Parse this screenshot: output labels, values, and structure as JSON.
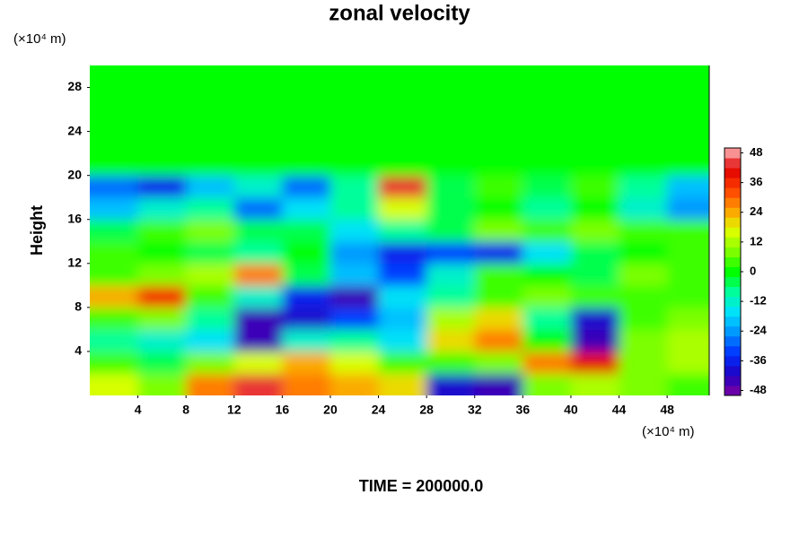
{
  "chart_data": {
    "type": "contour",
    "title": "zonal velocity",
    "xlabel": "(×10⁴ m)",
    "ylabel": "Height",
    "yunit": "(×10⁴ m)",
    "footer": "TIME = 200000.0",
    "xlim": [
      0,
      51.5
    ],
    "ylim": [
      0,
      30
    ],
    "xticks": [
      4,
      8,
      12,
      16,
      20,
      24,
      28,
      32,
      36,
      40,
      44,
      48
    ],
    "yticks": [
      4,
      8,
      12,
      16,
      20,
      24,
      28
    ],
    "x": [
      2,
      6,
      10,
      14,
      18,
      22,
      26,
      30,
      34,
      38,
      42,
      46,
      50
    ],
    "y": [
      1,
      3,
      5,
      7,
      9,
      11,
      13,
      15,
      17,
      19,
      21,
      23,
      25,
      27,
      29
    ],
    "z": [
      [
        16,
        8,
        28,
        44,
        28,
        24,
        20,
        -40,
        -44,
        8,
        12,
        8,
        4
      ],
      [
        4,
        -4,
        8,
        16,
        24,
        16,
        4,
        4,
        8,
        28,
        40,
        8,
        12
      ],
      [
        -8,
        -12,
        -16,
        -44,
        -12,
        -8,
        -16,
        20,
        28,
        0,
        -44,
        8,
        12
      ],
      [
        4,
        8,
        -8,
        -44,
        -40,
        -32,
        -20,
        12,
        20,
        -8,
        -40,
        4,
        8
      ],
      [
        24,
        36,
        4,
        -12,
        -36,
        -44,
        -16,
        -8,
        4,
        8,
        4,
        4,
        4
      ],
      [
        4,
        8,
        12,
        28,
        -4,
        -20,
        -32,
        -12,
        4,
        0,
        -4,
        8,
        4
      ],
      [
        4,
        0,
        -4,
        -8,
        0,
        -24,
        -36,
        -32,
        -36,
        -16,
        -4,
        0,
        4
      ],
      [
        -4,
        4,
        8,
        -4,
        -4,
        -16,
        -8,
        -4,
        8,
        4,
        8,
        4,
        4
      ],
      [
        -20,
        -12,
        -8,
        -30,
        -16,
        -8,
        16,
        -4,
        0,
        -8,
        0,
        -12,
        -24
      ],
      [
        -30,
        -36,
        -20,
        -12,
        -30,
        -8,
        44,
        -4,
        4,
        -4,
        4,
        -8,
        -20
      ],
      [
        0,
        0,
        0,
        0,
        0,
        0,
        0,
        0,
        0,
        0,
        0,
        0,
        0
      ],
      [
        0,
        0,
        0,
        0,
        0,
        0,
        0,
        0,
        0,
        0,
        0,
        0,
        0
      ],
      [
        0,
        0,
        0,
        0,
        0,
        0,
        0,
        0,
        0,
        0,
        0,
        0,
        0
      ],
      [
        0,
        0,
        0,
        0,
        0,
        0,
        0,
        0,
        0,
        0,
        0,
        0,
        0
      ],
      [
        0,
        0,
        0,
        0,
        0,
        0,
        0,
        0,
        0,
        0,
        0,
        0,
        0
      ]
    ],
    "clim": [
      -50,
      50
    ],
    "level_step": 4,
    "cticks": [
      48,
      36,
      24,
      12,
      0,
      -12,
      -24,
      -36,
      -48
    ],
    "colormap": [
      "#8000a0",
      "#2000c0",
      "#0030ff",
      "#0090ff",
      "#00e0ff",
      "#00ffa0",
      "#00ff00",
      "#80ff00",
      "#e0ff00",
      "#ffa000",
      "#ff4000",
      "#e00000",
      "#ffc0c0"
    ]
  }
}
